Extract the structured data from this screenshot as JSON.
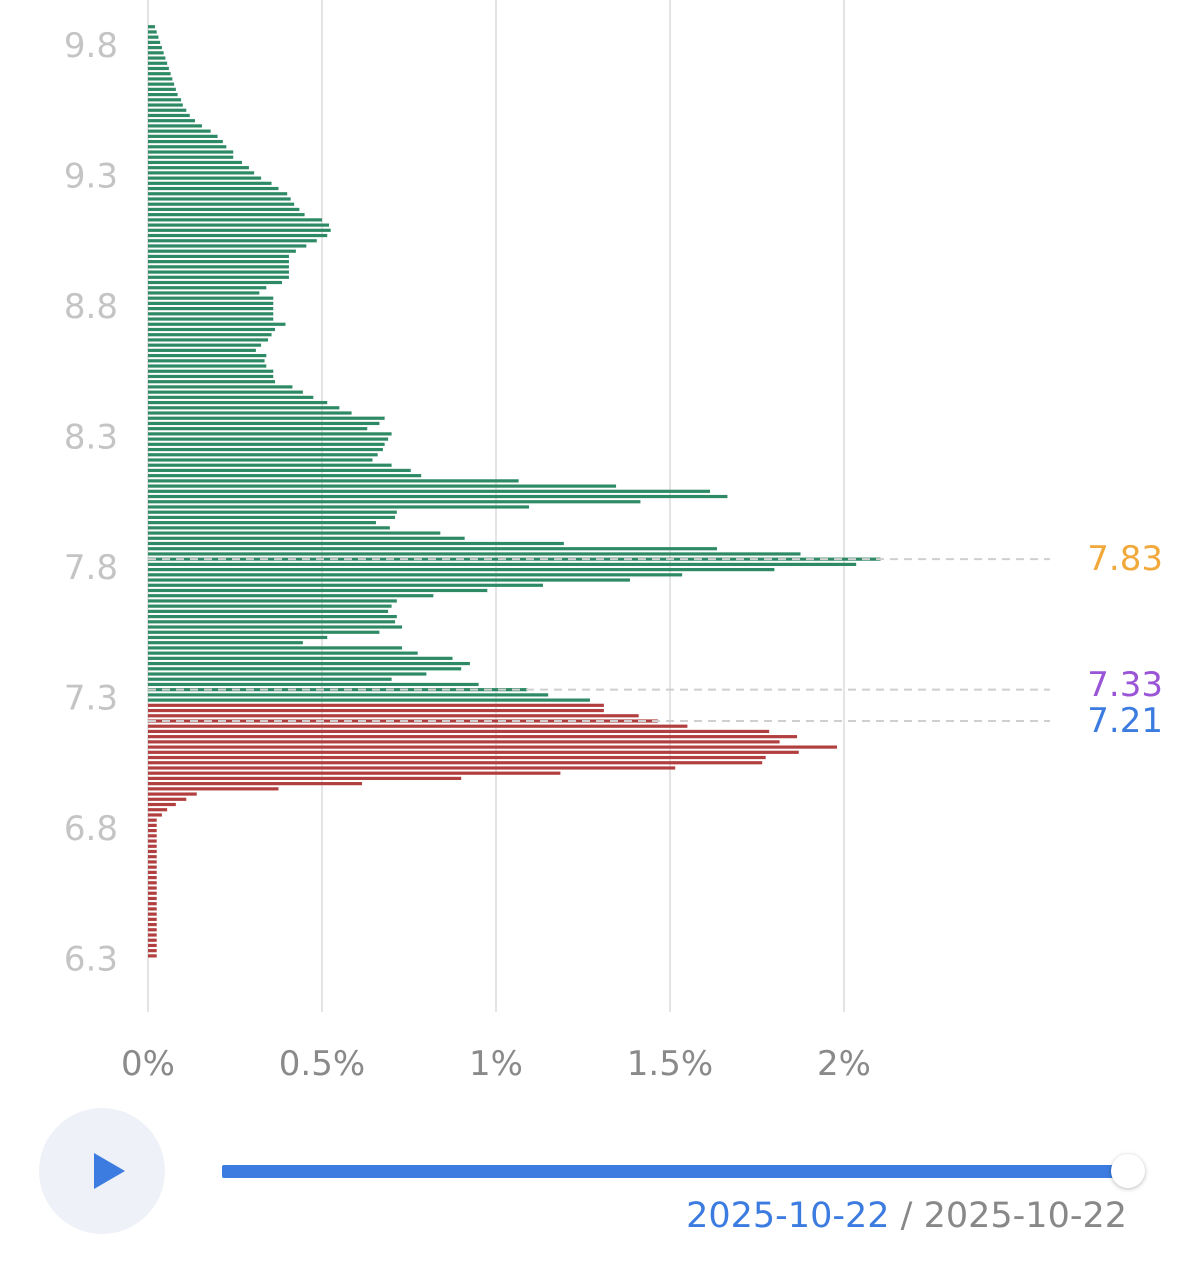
{
  "chart_data": {
    "type": "bar",
    "orientation": "horizontal",
    "ylim": [
      6.1,
      9.84
    ],
    "xlim": [
      0,
      2.65
    ],
    "y_ticks": [
      "9.8",
      "9.3",
      "8.8",
      "8.3",
      "7.8",
      "7.3",
      "6.8",
      "6.3"
    ],
    "y_tick_values": [
      9.8,
      9.3,
      8.8,
      8.3,
      7.8,
      7.3,
      6.8,
      6.3
    ],
    "x_ticks": [
      "0%",
      "0.5%",
      "1%",
      "1.5%",
      "2%"
    ],
    "x_tick_values": [
      0,
      0.5,
      1,
      1.5,
      2
    ],
    "grid": true,
    "bin_start": 6.31,
    "bin_step": 0.02,
    "series": [
      {
        "color": "#b23f3f",
        "values": [
          0.025,
          0.025,
          0.025,
          0.025,
          0.025,
          0.025,
          0.025,
          0.025,
          0.025,
          0.025,
          0.025,
          0.025,
          0.025,
          0.025,
          0.025,
          0.025,
          0.025,
          0.025,
          0.025,
          0.025,
          0.025,
          0.025,
          0.025,
          0.025,
          0.025,
          0.025,
          0.025,
          0.04,
          0.055,
          0.08,
          0.11,
          0.14,
          0.375,
          0.615,
          0.9,
          1.185,
          1.515,
          1.765,
          1.775,
          1.87,
          1.98,
          1.815,
          1.865,
          1.785,
          1.55,
          1.465,
          1.41,
          1.31,
          1.31
        ]
      },
      {
        "color": "#2d8a64",
        "values": [
          1.27,
          1.15,
          1.09,
          0.95,
          0.7,
          0.8,
          0.9,
          0.925,
          0.875,
          0.775,
          0.73,
          0.445,
          0.515,
          0.665,
          0.73,
          0.71,
          0.715,
          0.69,
          0.7,
          0.715,
          0.82,
          0.975,
          1.135,
          1.385,
          1.535,
          1.8,
          2.035,
          2.105,
          1.875,
          1.635,
          1.195,
          0.91,
          0.84,
          0.695,
          0.655,
          0.71,
          0.715,
          1.095,
          1.415,
          1.665,
          1.615,
          1.345,
          1.065,
          0.785,
          0.755,
          0.7,
          0.645,
          0.66,
          0.675,
          0.68,
          0.69,
          0.7,
          0.63,
          0.665,
          0.68,
          0.585,
          0.55,
          0.515,
          0.475,
          0.445,
          0.415,
          0.365,
          0.36,
          0.36,
          0.34,
          0.335,
          0.34,
          0.31,
          0.325,
          0.345,
          0.355,
          0.365,
          0.395,
          0.36,
          0.36,
          0.36,
          0.36,
          0.36,
          0.32,
          0.34,
          0.385,
          0.405,
          0.405,
          0.405,
          0.405,
          0.405,
          0.425,
          0.455,
          0.485,
          0.515,
          0.525,
          0.52,
          0.5,
          0.45,
          0.435,
          0.42,
          0.41,
          0.4,
          0.375,
          0.355,
          0.325,
          0.305,
          0.29,
          0.27,
          0.245,
          0.245,
          0.225,
          0.215,
          0.2,
          0.18,
          0.155,
          0.135,
          0.12,
          0.11,
          0.1,
          0.095,
          0.085,
          0.08,
          0.075,
          0.07,
          0.065,
          0.06,
          0.055,
          0.05,
          0.045,
          0.04,
          0.035,
          0.03,
          0.025,
          0.02
        ]
      }
    ],
    "markers": [
      {
        "label": "7.83",
        "value": 7.83,
        "color": "#f2a93b"
      },
      {
        "label": "7.33",
        "value": 7.33,
        "color": "#9a55d6"
      },
      {
        "label": "7.21",
        "value": 7.21,
        "color": "#3c7be0"
      }
    ]
  },
  "player": {
    "progress": 1.0,
    "current_date": "2025-10-22",
    "separator": "/",
    "end_date": "2025-10-22"
  },
  "colors": {
    "accent": "#3c7be0",
    "grid": "#e4e4e4",
    "tick_label": "#c4c4c4",
    "x_tick_label": "#8a8a8a"
  }
}
